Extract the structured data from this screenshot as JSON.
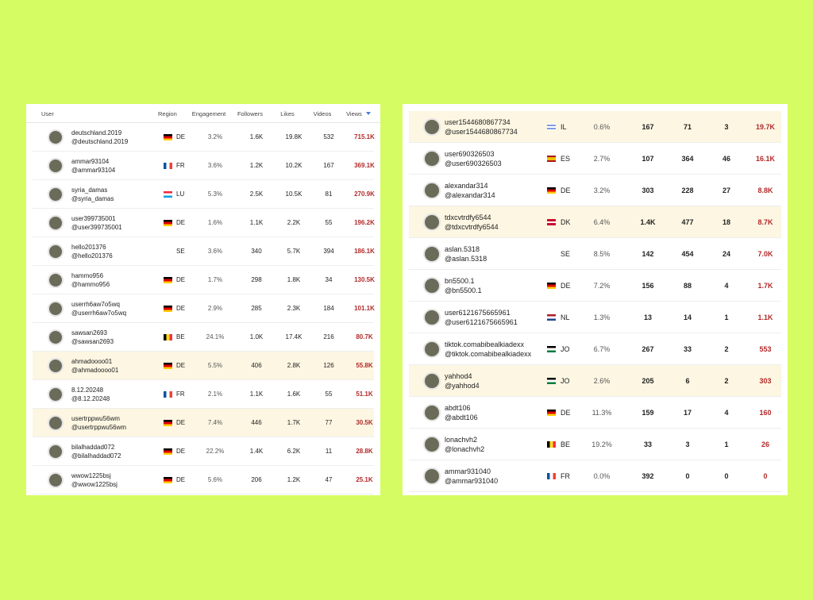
{
  "tables": [
    {
      "header": [
        "User",
        "Region",
        "Engagement",
        "Followers",
        "Likes",
        "Videos",
        "Views"
      ],
      "rows": [
        [
          "deutschland.2019",
          "@deutschland.2019",
          "DE",
          "3.2%",
          "1.6K",
          "19.8K",
          "532",
          "715.1K"
        ],
        [
          "ammar93104",
          "@ammar93104",
          "FR",
          "3.6%",
          "1.2K",
          "10.2K",
          "167",
          "369.1K"
        ],
        [
          "syria_damas",
          "@syria_damas",
          "LU",
          "5.3%",
          "2.5K",
          "10.5K",
          "81",
          "270.9K"
        ],
        [
          "user399735001",
          "@user399735001",
          "DE",
          "1.6%",
          "1.1K",
          "2.2K",
          "55",
          "196.2K"
        ],
        [
          "hello201376",
          "@hello201376",
          "SE",
          "3.6%",
          "340",
          "5.7K",
          "394",
          "186.1K"
        ],
        [
          "hammo956",
          "@hammo956",
          "DE",
          "1.7%",
          "298",
          "1.8K",
          "34",
          "130.5K"
        ],
        [
          "userrh6aw7o5wq",
          "@userrh6aw7o5wq",
          "DE",
          "2.9%",
          "285",
          "2.3K",
          "184",
          "101.1K"
        ],
        [
          "sawsan2693",
          "@sawsan2693",
          "BE",
          "24.1%",
          "1.0K",
          "17.4K",
          "216",
          "80.7K"
        ],
        [
          "ahmadoooo01",
          "@ahmadoooo01",
          "DE",
          "5.5%",
          "406",
          "2.8K",
          "126",
          "55.8K"
        ],
        [
          "8.12.20248",
          "@8.12.20248",
          "FR",
          "2.1%",
          "1.1K",
          "1.6K",
          "55",
          "51.1K"
        ],
        [
          "usertrppwu56wm",
          "@usertrppwu56wm",
          "DE",
          "7.4%",
          "446",
          "1.7K",
          "77",
          "30.5K"
        ],
        [
          "bilalhaddad072",
          "@bilalhaddad072",
          "DE",
          "22.2%",
          "1.4K",
          "6.2K",
          "11",
          "28.8K"
        ],
        [
          "wwow1225bsj",
          "@wwow1225bsj",
          "DE",
          "5.6%",
          "206",
          "1.2K",
          "47",
          "25.1K"
        ]
      ]
    },
    {
      "rows": [
        [
          "user1544680867734",
          "@user1544680867734",
          "IL",
          "0.6%",
          "167",
          "71",
          "3",
          "19.7K"
        ],
        [
          "user690326503",
          "@user690326503",
          "ES",
          "2.7%",
          "107",
          "364",
          "46",
          "16.1K"
        ],
        [
          "alexandar314",
          "@alexandar314",
          "DE",
          "3.2%",
          "303",
          "228",
          "27",
          "8.8K"
        ],
        [
          "tdxcvtrdfy6544",
          "@tdxcvtrdfy6544",
          "DK",
          "6.4%",
          "1.4K",
          "477",
          "18",
          "8.7K"
        ],
        [
          "aslan.5318",
          "@aslan.5318",
          "SE",
          "8.5%",
          "142",
          "454",
          "24",
          "7.0K"
        ],
        [
          "bn5500.1",
          "@bn5500.1",
          "DE",
          "7.2%",
          "156",
          "88",
          "4",
          "1.7K"
        ],
        [
          "user6121675665961",
          "@user6121675665961",
          "NL",
          "1.3%",
          "13",
          "14",
          "1",
          "1.1K"
        ],
        [
          "tiktok.comabibealkiadexx",
          "@tiktok.comabibealkiadexx",
          "JO",
          "6.7%",
          "267",
          "33",
          "2",
          "553"
        ],
        [
          "yahhod4",
          "@yahhod4",
          "JO",
          "2.6%",
          "205",
          "6",
          "2",
          "303"
        ],
        [
          "abdt106",
          "@abdt106",
          "DE",
          "11.3%",
          "159",
          "17",
          "4",
          "160"
        ],
        [
          "lonachvh2",
          "@lonachvh2",
          "BE",
          "19.2%",
          "33",
          "3",
          "1",
          "26"
        ],
        [
          "ammar931040",
          "@ammar931040",
          "FR",
          "0.0%",
          "392",
          "0",
          "0",
          "0"
        ]
      ]
    }
  ]
}
